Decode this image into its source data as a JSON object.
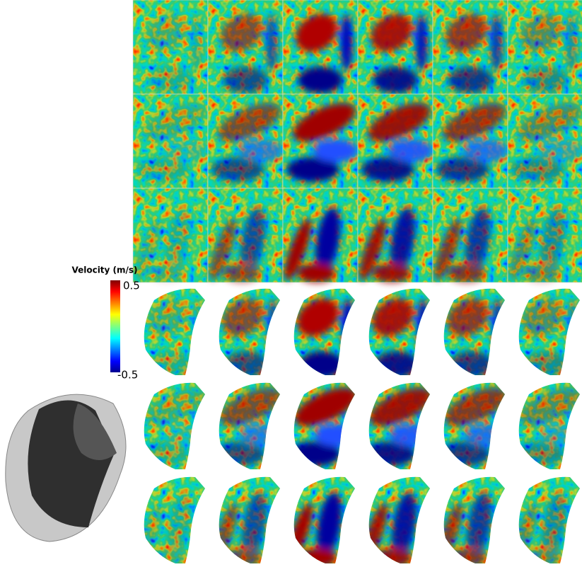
{
  "colorbar": {
    "title": "Velocity (m/s)",
    "ticks": [
      0.5,
      -0.5
    ]
  }
}
